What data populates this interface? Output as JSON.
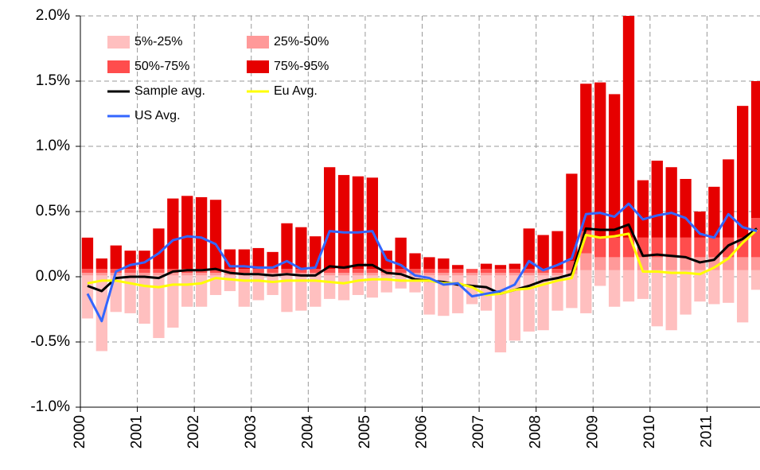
{
  "chart_data": {
    "type": "bar",
    "categories": [
      "2000",
      null,
      null,
      null,
      "2001",
      null,
      null,
      null,
      "2002",
      null,
      null,
      null,
      "2003",
      null,
      null,
      null,
      "2004",
      null,
      null,
      null,
      "2005",
      null,
      null,
      null,
      "2006",
      null,
      null,
      null,
      "2007",
      null,
      null,
      null,
      "2008",
      null,
      null,
      null,
      "2009",
      null,
      null,
      null,
      "2010",
      null,
      null,
      null,
      "2011",
      null,
      null,
      null
    ],
    "bar_base": [
      -0.32,
      -0.57,
      -0.27,
      -0.28,
      -0.36,
      -0.47,
      -0.39,
      -0.23,
      -0.23,
      -0.14,
      -0.11,
      -0.23,
      -0.18,
      -0.14,
      -0.27,
      -0.26,
      -0.23,
      -0.17,
      -0.18,
      -0.14,
      -0.16,
      -0.12,
      -0.09,
      -0.12,
      -0.29,
      -0.3,
      -0.28,
      -0.21,
      -0.26,
      -0.58,
      -0.49,
      -0.42,
      -0.41,
      -0.26,
      -0.24,
      -0.28,
      -0.07,
      -0.23,
      -0.19,
      -0.17,
      -0.38,
      -0.41,
      -0.29,
      -0.19,
      -0.21,
      -0.2,
      -0.35,
      -0.1
    ],
    "series": [
      {
        "name": "5%-25%",
        "kind": "bar",
        "color": "#ffbfbf",
        "values": [
          0.33,
          0.58,
          0.28,
          0.29,
          0.37,
          0.48,
          0.4,
          0.24,
          0.24,
          0.15,
          0.12,
          0.24,
          0.19,
          0.15,
          0.28,
          0.27,
          0.24,
          0.18,
          0.19,
          0.15,
          0.17,
          0.13,
          0.1,
          0.13,
          0.3,
          0.31,
          0.29,
          0.22,
          0.27,
          0.59,
          0.5,
          0.43,
          0.42,
          0.27,
          0.26,
          0.33,
          0.12,
          0.28,
          0.24,
          0.22,
          0.43,
          0.46,
          0.34,
          0.24,
          0.26,
          0.25,
          0.4,
          0.15
        ]
      },
      {
        "name": "25%-50%",
        "kind": "bar",
        "color": "#ff9999",
        "values": [
          0.02,
          0.02,
          0.02,
          0.02,
          0.02,
          0.02,
          0.02,
          0.02,
          0.02,
          0.02,
          0.02,
          0.02,
          0.02,
          0.02,
          0.02,
          0.02,
          0.02,
          0.02,
          0.02,
          0.02,
          0.02,
          0.02,
          0.02,
          0.02,
          0.02,
          0.02,
          0.02,
          0.02,
          0.02,
          0.02,
          0.02,
          0.02,
          0.02,
          0.02,
          0.03,
          0.13,
          0.1,
          0.1,
          0.1,
          0.1,
          0.1,
          0.1,
          0.1,
          0.1,
          0.1,
          0.1,
          0.1,
          0.1
        ]
      },
      {
        "name": "50%-75%",
        "kind": "bar",
        "color": "#ff4d4d",
        "values": [
          0.03,
          0.03,
          0.03,
          0.03,
          0.03,
          0.03,
          0.03,
          0.03,
          0.03,
          0.03,
          0.03,
          0.03,
          0.03,
          0.03,
          0.03,
          0.03,
          0.03,
          0.03,
          0.03,
          0.03,
          0.03,
          0.03,
          0.03,
          0.03,
          0.03,
          0.03,
          0.03,
          0.03,
          0.03,
          0.03,
          0.03,
          0.03,
          0.03,
          0.03,
          0.07,
          0.17,
          0.15,
          0.15,
          0.15,
          0.15,
          0.15,
          0.15,
          0.15,
          0.15,
          0.15,
          0.15,
          0.15,
          0.3
        ]
      },
      {
        "name": "75%-95%",
        "kind": "bar",
        "color": "#e60000",
        "values": [
          0.24,
          0.08,
          0.18,
          0.14,
          0.14,
          0.31,
          0.54,
          0.56,
          0.55,
          0.53,
          0.15,
          0.15,
          0.16,
          0.13,
          0.35,
          0.32,
          0.25,
          0.78,
          0.72,
          0.71,
          0.7,
          0.14,
          0.24,
          0.12,
          0.09,
          0.08,
          0.03,
          0.0,
          0.04,
          0.03,
          0.04,
          0.31,
          0.26,
          0.29,
          0.67,
          1.13,
          1.19,
          1.1,
          1.72,
          0.44,
          0.59,
          0.54,
          0.45,
          0.2,
          0.39,
          0.6,
          1.01,
          1.05
        ]
      },
      {
        "name": "Sample avg.",
        "kind": "line",
        "color": "#000000",
        "values": [
          -0.07,
          -0.11,
          -0.01,
          0.0,
          0.0,
          -0.01,
          0.04,
          0.05,
          0.05,
          0.06,
          0.03,
          0.02,
          0.02,
          0.01,
          0.02,
          0.01,
          0.01,
          0.08,
          0.07,
          0.09,
          0.09,
          0.03,
          0.02,
          -0.02,
          -0.03,
          -0.04,
          -0.06,
          -0.07,
          -0.08,
          -0.13,
          -0.1,
          -0.07,
          -0.03,
          -0.01,
          0.02,
          0.37,
          0.36,
          0.36,
          0.4,
          0.16,
          0.17,
          0.16,
          0.15,
          0.11,
          0.13,
          0.24,
          0.29,
          0.37
        ]
      },
      {
        "name": "Eu Avg.",
        "kind": "line",
        "color": "#ffff00",
        "values": [
          -0.05,
          -0.03,
          -0.03,
          -0.05,
          -0.07,
          -0.08,
          -0.06,
          -0.06,
          -0.05,
          -0.01,
          -0.02,
          -0.03,
          -0.03,
          -0.04,
          -0.03,
          -0.03,
          -0.03,
          -0.04,
          -0.05,
          -0.03,
          -0.02,
          -0.02,
          -0.03,
          -0.03,
          -0.03,
          -0.05,
          -0.05,
          -0.08,
          -0.14,
          -0.13,
          -0.1,
          -0.09,
          -0.06,
          -0.03,
          -0.01,
          0.32,
          0.3,
          0.31,
          0.33,
          0.04,
          0.04,
          0.03,
          0.03,
          0.02,
          0.07,
          0.14,
          0.26,
          0.36
        ]
      },
      {
        "name": "US Avg.",
        "kind": "line",
        "color": "#3366ff",
        "values": [
          -0.13,
          -0.34,
          0.04,
          0.09,
          0.11,
          0.18,
          0.28,
          0.31,
          0.3,
          0.25,
          0.08,
          0.08,
          0.07,
          0.07,
          0.12,
          0.06,
          0.07,
          0.35,
          0.34,
          0.34,
          0.35,
          0.13,
          0.09,
          0.01,
          -0.01,
          -0.06,
          -0.05,
          -0.15,
          -0.13,
          -0.11,
          -0.06,
          0.12,
          0.05,
          0.09,
          0.14,
          0.48,
          0.49,
          0.46,
          0.56,
          0.44,
          0.47,
          0.49,
          0.45,
          0.33,
          0.3,
          0.48,
          0.38,
          0.35
        ]
      }
    ],
    "ylim": [
      -1,
      2
    ],
    "yticks": [
      {
        "value": -1,
        "label": "-1.0%"
      },
      {
        "value": -0.5,
        "label": "-0.5%"
      },
      {
        "value": 0,
        "label": "0.0%"
      },
      {
        "value": 0.5,
        "label": "0.5%"
      },
      {
        "value": 1,
        "label": "1.0%"
      },
      {
        "value": 1.5,
        "label": "1.5%"
      },
      {
        "value": 2,
        "label": "2.0%"
      }
    ],
    "grid": true
  }
}
